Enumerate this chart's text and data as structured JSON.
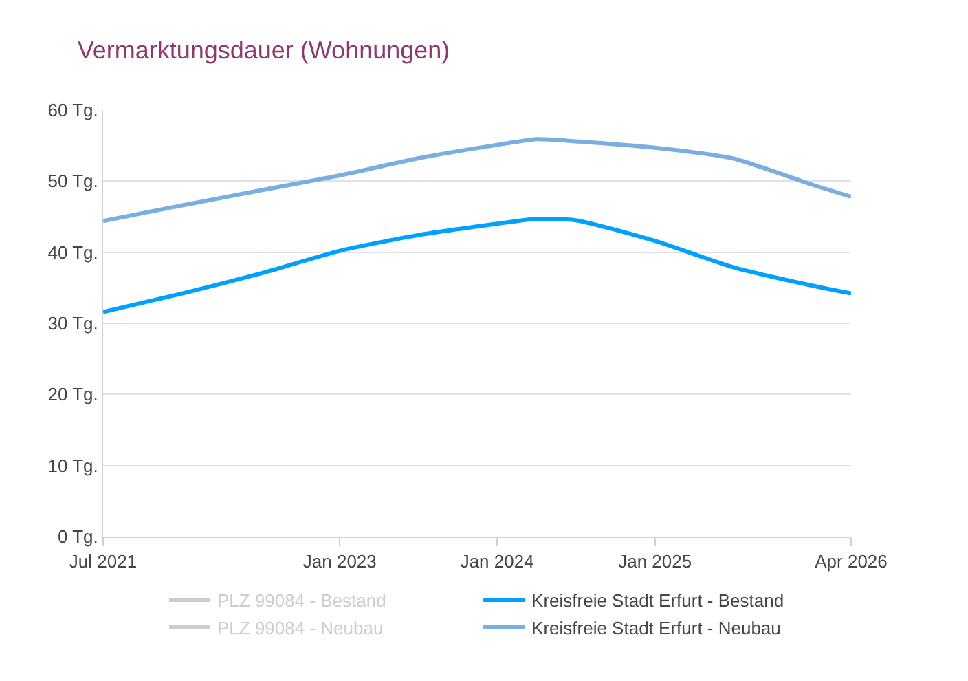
{
  "chart_data": {
    "type": "line",
    "title": "Vermarktungsdauer (Wohnungen)",
    "x": [
      "2021-07",
      "2022-01",
      "2022-07",
      "2023-01",
      "2023-07",
      "2024-01",
      "2024-04",
      "2024-07",
      "2025-01",
      "2025-07",
      "2026-01",
      "2026-04"
    ],
    "series": [
      {
        "name": "PLZ 99084 - Bestand",
        "color": "#cccccc",
        "values": [
          null,
          null,
          null,
          null,
          null,
          null,
          null,
          null,
          null,
          null,
          null,
          null
        ]
      },
      {
        "name": "Kreisfreie Stadt Erfurt - Bestand",
        "color": "#00a0ff",
        "values": [
          31.6,
          34.2,
          37.0,
          40.2,
          42.4,
          44.0,
          44.7,
          44.5,
          41.6,
          37.9,
          35.3,
          34.2
        ]
      },
      {
        "name": "PLZ 99084 - Neubau",
        "color": "#cccccc",
        "values": [
          null,
          null,
          null,
          null,
          null,
          null,
          null,
          null,
          null,
          null,
          null,
          null
        ]
      },
      {
        "name": "Kreisfreie Stadt Erfurt - Neubau",
        "color": "#7aade0",
        "values": [
          44.4,
          46.6,
          48.7,
          50.8,
          53.2,
          55.1,
          55.9,
          55.6,
          54.7,
          53.2,
          49.5,
          47.8
        ]
      }
    ],
    "xlim": [
      "2021-07",
      "2026-04"
    ],
    "xticks": [
      {
        "value": "2021-07",
        "label": "Jul 2021"
      },
      {
        "value": "2023-01",
        "label": "Jan 2023"
      },
      {
        "value": "2024-01",
        "label": "Jan 2024"
      },
      {
        "value": "2025-01",
        "label": "Jan 2025"
      },
      {
        "value": "2026-04",
        "label": "Apr 2026"
      }
    ],
    "ylim": [
      0,
      60
    ],
    "yticks": [
      {
        "value": 0,
        "label": "0 Tg."
      },
      {
        "value": 10,
        "label": "10 Tg."
      },
      {
        "value": 20,
        "label": "20 Tg."
      },
      {
        "value": 30,
        "label": "30 Tg."
      },
      {
        "value": 40,
        "label": "40 Tg."
      },
      {
        "value": 50,
        "label": "50 Tg."
      },
      {
        "value": 60,
        "label": "60 Tg."
      }
    ],
    "grid": "y",
    "legend": "bottom",
    "marker": "none",
    "line_style": "solid"
  }
}
